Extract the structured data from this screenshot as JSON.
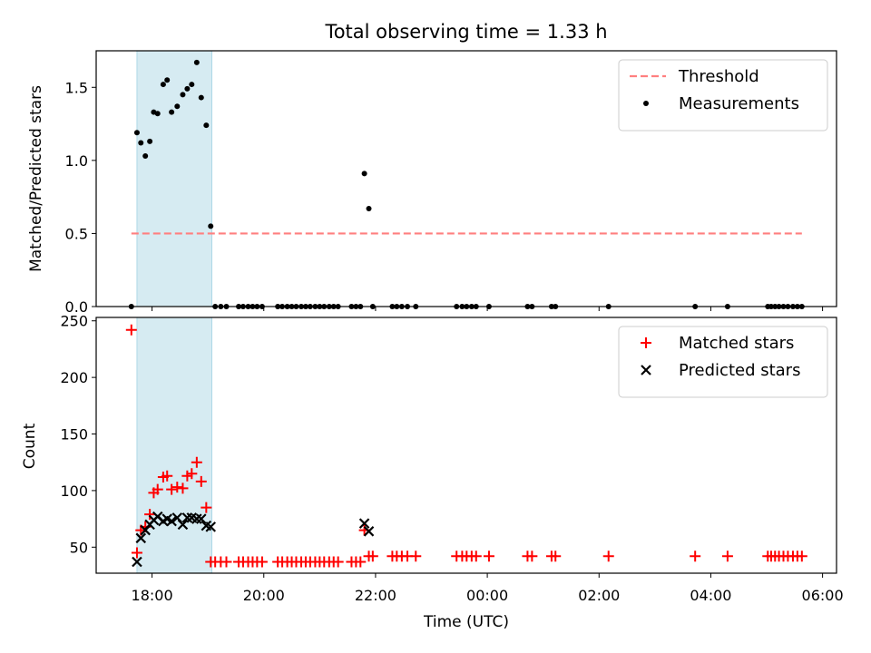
{
  "chart_data": [
    {
      "type": "scatter",
      "title": "Total observing time = 1.33 h",
      "xlabel": "",
      "ylabel": "Matched/Predicted stars",
      "ylim": [
        0,
        1.75
      ],
      "yticks": [
        "0.0",
        "0.5",
        "1.0",
        "1.5"
      ],
      "xlim": [
        17.0,
        30.25
      ],
      "grid": false,
      "legend_position": "top-right",
      "highlight_span": [
        17.73,
        19.07
      ],
      "threshold": {
        "name": "Threshold",
        "value": 0.5,
        "x": [
          17.63,
          29.63
        ],
        "color": "#ff7f7f"
      },
      "series": [
        {
          "name": "Measurements",
          "color": "#000000",
          "x": [
            17.63,
            17.73,
            17.8,
            17.88,
            17.96,
            18.03,
            18.1,
            18.2,
            18.27,
            18.35,
            18.45,
            18.55,
            18.63,
            18.71,
            18.8,
            18.88,
            18.97,
            19.05,
            19.13,
            19.23,
            19.33,
            19.55,
            19.63,
            19.72,
            19.8,
            19.88,
            19.97,
            20.25,
            20.33,
            20.42,
            20.5,
            20.58,
            20.67,
            20.75,
            20.83,
            20.92,
            21.0,
            21.08,
            21.17,
            21.25,
            21.33,
            21.57,
            21.65,
            21.73,
            21.8,
            21.88,
            21.95,
            22.3,
            22.38,
            22.47,
            22.57,
            22.72,
            23.45,
            23.55,
            23.63,
            23.72,
            23.8,
            24.03,
            24.72,
            24.8,
            25.15,
            25.22,
            26.17,
            27.72,
            28.3,
            29.02,
            29.08,
            29.15,
            29.22,
            29.3,
            29.38,
            29.47,
            29.55,
            29.63
          ],
          "y": [
            0.0,
            1.19,
            1.12,
            1.03,
            1.13,
            1.33,
            1.32,
            1.52,
            1.55,
            1.33,
            1.37,
            1.45,
            1.49,
            1.52,
            1.67,
            1.43,
            1.24,
            0.55,
            0.0,
            0.0,
            0.0,
            0.0,
            0.0,
            0.0,
            0.0,
            0.0,
            0.0,
            0.0,
            0.0,
            0.0,
            0.0,
            0.0,
            0.0,
            0.0,
            0.0,
            0.0,
            0.0,
            0.0,
            0.0,
            0.0,
            0.0,
            0.0,
            0.0,
            0.0,
            0.91,
            0.67,
            0.0,
            0.0,
            0.0,
            0.0,
            0.0,
            0.0,
            0.0,
            0.0,
            0.0,
            0.0,
            0.0,
            0.0,
            0.0,
            0.0,
            0.0,
            0.0,
            0.0,
            0.0,
            0.0,
            0.0,
            0.0,
            0.0,
            0.0,
            0.0,
            0.0,
            0.0,
            0.0,
            0.0
          ]
        }
      ]
    },
    {
      "type": "scatter",
      "title": "",
      "xlabel": "Time (UTC)",
      "ylabel": "Count",
      "ylim": [
        27,
        253
      ],
      "yticks": [
        "50",
        "100",
        "150",
        "200",
        "250"
      ],
      "xlim": [
        17.0,
        30.25
      ],
      "xticks": [
        "18:00",
        "20:00",
        "22:00",
        "00:00",
        "02:00",
        "04:00",
        "06:00"
      ],
      "grid": false,
      "legend_position": "top-right",
      "highlight_span": [
        17.73,
        19.07
      ],
      "series": [
        {
          "name": "Matched stars",
          "color": "#ff0000",
          "marker": "+",
          "x": [
            17.63,
            17.73,
            17.8,
            17.88,
            17.96,
            18.03,
            18.1,
            18.2,
            18.27,
            18.35,
            18.45,
            18.55,
            18.63,
            18.71,
            18.8,
            18.88,
            18.97,
            19.05,
            19.13,
            19.23,
            19.33,
            19.55,
            19.63,
            19.72,
            19.8,
            19.88,
            19.97,
            20.25,
            20.33,
            20.42,
            20.5,
            20.58,
            20.67,
            20.75,
            20.83,
            20.92,
            21.0,
            21.08,
            21.17,
            21.25,
            21.33,
            21.57,
            21.65,
            21.73,
            21.8,
            21.88,
            21.95,
            22.3,
            22.38,
            22.47,
            22.57,
            22.72,
            23.45,
            23.55,
            23.63,
            23.72,
            23.8,
            24.03,
            24.72,
            24.8,
            25.15,
            25.22,
            26.17,
            27.72,
            28.3,
            29.02,
            29.08,
            29.15,
            29.22,
            29.3,
            29.38,
            29.47,
            29.55,
            29.63
          ],
          "y": [
            242,
            45,
            65,
            68,
            79,
            98,
            101,
            112,
            113,
            101,
            103,
            102,
            113,
            115,
            125,
            108,
            85,
            37,
            37,
            37,
            37,
            37,
            37,
            37,
            37,
            37,
            37,
            37,
            37,
            37,
            37,
            37,
            37,
            37,
            37,
            37,
            37,
            37,
            37,
            37,
            37,
            37,
            37,
            37,
            65,
            42,
            42,
            42,
            42,
            42,
            42,
            42,
            42,
            42,
            42,
            42,
            42,
            42,
            42,
            42,
            42,
            42,
            42,
            42,
            42,
            42,
            42,
            42,
            42,
            42,
            42,
            42,
            42,
            42
          ]
        },
        {
          "name": "Predicted stars",
          "color": "#000000",
          "marker": "x",
          "x": [
            17.73,
            17.8,
            17.88,
            17.96,
            18.03,
            18.1,
            18.2,
            18.27,
            18.35,
            18.45,
            18.55,
            18.63,
            18.71,
            18.8,
            18.88,
            18.97,
            19.05,
            21.8,
            21.88
          ],
          "y": [
            37,
            58,
            65,
            70,
            74,
            77,
            73,
            75,
            73,
            76,
            70,
            76,
            76,
            75,
            75,
            69,
            68,
            71,
            64
          ]
        }
      ]
    }
  ]
}
